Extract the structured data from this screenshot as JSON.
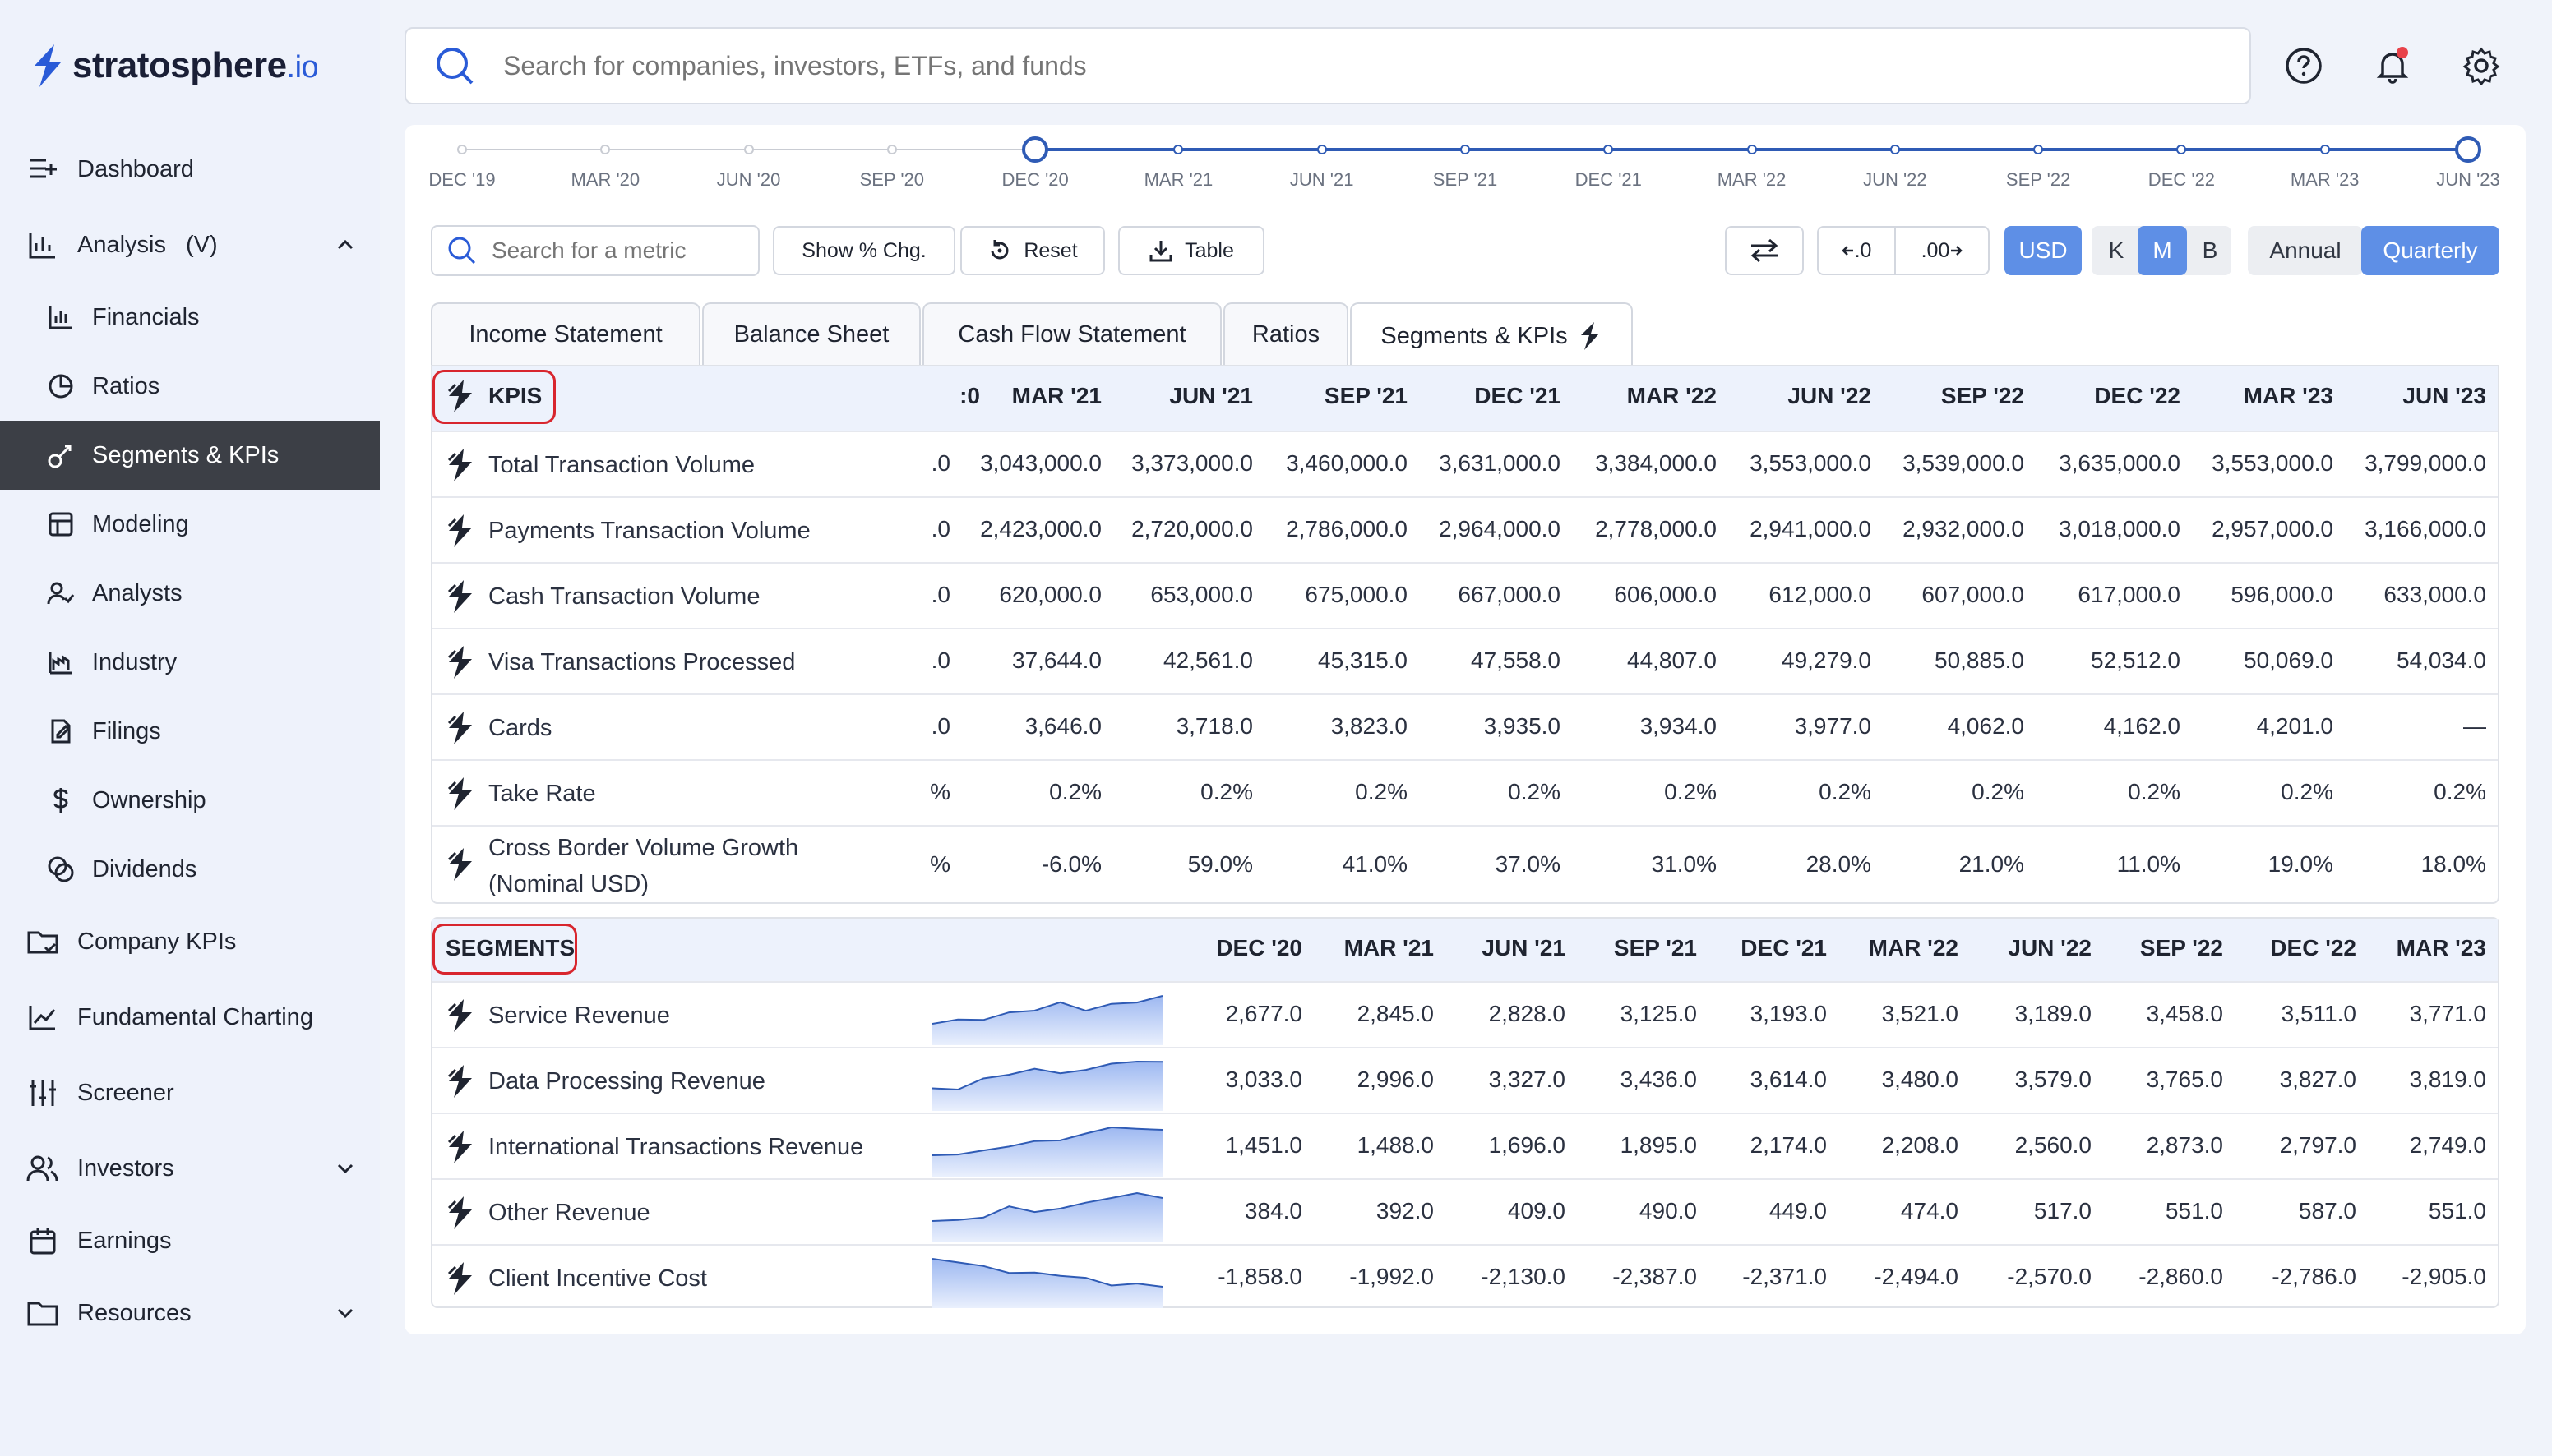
{
  "app": {
    "logo_main": "stratosphere",
    "logo_suffix": ".io",
    "search_placeholder": "Search for companies, investors, ETFs, and funds"
  },
  "sidebar": {
    "items": [
      {
        "label": "Dashboard",
        "icon": "dashboard-icon"
      },
      {
        "label": "Analysis",
        "suffix": "(V)",
        "icon": "analysis-icon"
      },
      {
        "label": "Financials",
        "icon": "financials-icon"
      },
      {
        "label": "Ratios",
        "icon": "ratios-icon"
      },
      {
        "label": "Segments & KPIs",
        "icon": "segments-icon"
      },
      {
        "label": "Modeling",
        "icon": "modeling-icon"
      },
      {
        "label": "Analysts",
        "icon": "analysts-icon"
      },
      {
        "label": "Industry",
        "icon": "industry-icon"
      },
      {
        "label": "Filings",
        "icon": "filings-icon"
      },
      {
        "label": "Ownership",
        "icon": "ownership-icon"
      },
      {
        "label": "Dividends",
        "icon": "dividends-icon"
      },
      {
        "label": "Company KPIs",
        "icon": "company-kpis-icon"
      },
      {
        "label": "Fundamental Charting",
        "icon": "charting-icon"
      },
      {
        "label": "Screener",
        "icon": "screener-icon"
      },
      {
        "label": "Investors",
        "icon": "investors-icon"
      },
      {
        "label": "Earnings",
        "icon": "earnings-icon"
      },
      {
        "label": "Resources",
        "icon": "resources-icon"
      }
    ]
  },
  "timeline": {
    "labels": [
      "DEC '19",
      "MAR '20",
      "JUN '20",
      "SEP '20",
      "DEC '20",
      "MAR '21",
      "JUN '21",
      "SEP '21",
      "DEC '21",
      "MAR '22",
      "JUN '22",
      "SEP '22",
      "DEC '22",
      "MAR '23",
      "JUN '23"
    ]
  },
  "toolbar": {
    "metric_search_placeholder": "Search for a metric",
    "show_pct": "Show % Chg.",
    "reset": "Reset",
    "table": "Table",
    "dec_less": ".0",
    "dec_more": ".00",
    "currency": "USD",
    "units": [
      "K",
      "M",
      "B"
    ],
    "selected_unit": "M",
    "periods": [
      "Annual",
      "Quarterly"
    ],
    "selected_period": "Quarterly"
  },
  "tabs": [
    "Income Statement",
    "Balance Sheet",
    "Cash Flow Statement",
    "Ratios",
    "Segments & KPIs"
  ],
  "kpis": {
    "title": "KPIS",
    "cut_header": ":0",
    "columns": [
      "MAR '21",
      "JUN '21",
      "SEP '21",
      "DEC '21",
      "MAR '22",
      "JUN '22",
      "SEP '22",
      "DEC '22",
      "MAR '23",
      "JUN '23"
    ],
    "rows": [
      {
        "name": "Total Transaction Volume",
        "cut": ".0",
        "values": [
          "3,043,000.0",
          "3,373,000.0",
          "3,460,000.0",
          "3,631,000.0",
          "3,384,000.0",
          "3,553,000.0",
          "3,539,000.0",
          "3,635,000.0",
          "3,553,000.0",
          "3,799,000.0"
        ]
      },
      {
        "name": "Payments Transaction Volume",
        "cut": ".0",
        "values": [
          "2,423,000.0",
          "2,720,000.0",
          "2,786,000.0",
          "2,964,000.0",
          "2,778,000.0",
          "2,941,000.0",
          "2,932,000.0",
          "3,018,000.0",
          "2,957,000.0",
          "3,166,000.0"
        ]
      },
      {
        "name": "Cash Transaction Volume",
        "cut": ".0",
        "values": [
          "620,000.0",
          "653,000.0",
          "675,000.0",
          "667,000.0",
          "606,000.0",
          "612,000.0",
          "607,000.0",
          "617,000.0",
          "596,000.0",
          "633,000.0"
        ]
      },
      {
        "name": "Visa Transactions Processed",
        "cut": ".0",
        "values": [
          "37,644.0",
          "42,561.0",
          "45,315.0",
          "47,558.0",
          "44,807.0",
          "49,279.0",
          "50,885.0",
          "52,512.0",
          "50,069.0",
          "54,034.0"
        ]
      },
      {
        "name": "Cards",
        "cut": ".0",
        "values": [
          "3,646.0",
          "3,718.0",
          "3,823.0",
          "3,935.0",
          "3,934.0",
          "3,977.0",
          "4,062.0",
          "4,162.0",
          "4,201.0",
          "—"
        ]
      },
      {
        "name": "Take Rate",
        "cut": "%",
        "values": [
          "0.2%",
          "0.2%",
          "0.2%",
          "0.2%",
          "0.2%",
          "0.2%",
          "0.2%",
          "0.2%",
          "0.2%",
          "0.2%"
        ]
      },
      {
        "name": "Cross Border Volume Growth",
        "name2": "(Nominal USD)",
        "cut": "%",
        "values": [
          "-6.0%",
          "59.0%",
          "41.0%",
          "37.0%",
          "31.0%",
          "28.0%",
          "21.0%",
          "11.0%",
          "19.0%",
          "18.0%"
        ]
      }
    ]
  },
  "segments": {
    "title": "SEGMENTS",
    "columns": [
      "DEC '20",
      "MAR '21",
      "JUN '21",
      "SEP '21",
      "DEC '21",
      "MAR '22",
      "JUN '22",
      "SEP '22",
      "DEC '22",
      "MAR '23"
    ],
    "rows": [
      {
        "name": "Service Revenue",
        "values": [
          "2,677.0",
          "2,845.0",
          "2,828.0",
          "3,125.0",
          "3,193.0",
          "3,521.0",
          "3,189.0",
          "3,458.0",
          "3,511.0",
          "3,771.0"
        ]
      },
      {
        "name": "Data Processing Revenue",
        "values": [
          "3,033.0",
          "2,996.0",
          "3,327.0",
          "3,436.0",
          "3,614.0",
          "3,480.0",
          "3,579.0",
          "3,765.0",
          "3,827.0",
          "3,819.0"
        ]
      },
      {
        "name": "International Transactions Revenue",
        "values": [
          "1,451.0",
          "1,488.0",
          "1,696.0",
          "1,895.0",
          "2,174.0",
          "2,208.0",
          "2,560.0",
          "2,873.0",
          "2,797.0",
          "2,749.0"
        ]
      },
      {
        "name": "Other Revenue",
        "values": [
          "384.0",
          "392.0",
          "409.0",
          "490.0",
          "449.0",
          "474.0",
          "517.0",
          "551.0",
          "587.0",
          "551.0"
        ]
      },
      {
        "name": "Client Incentive Cost",
        "values": [
          "-1,858.0",
          "-1,992.0",
          "-2,130.0",
          "-2,387.0",
          "-2,371.0",
          "-2,494.0",
          "-2,570.0",
          "-2,860.0",
          "-2,786.0",
          "-2,905.0"
        ]
      }
    ]
  },
  "colors": {
    "accent": "#2f5bb5",
    "selected": "#5e8fe6",
    "badge": "#d8262e"
  }
}
